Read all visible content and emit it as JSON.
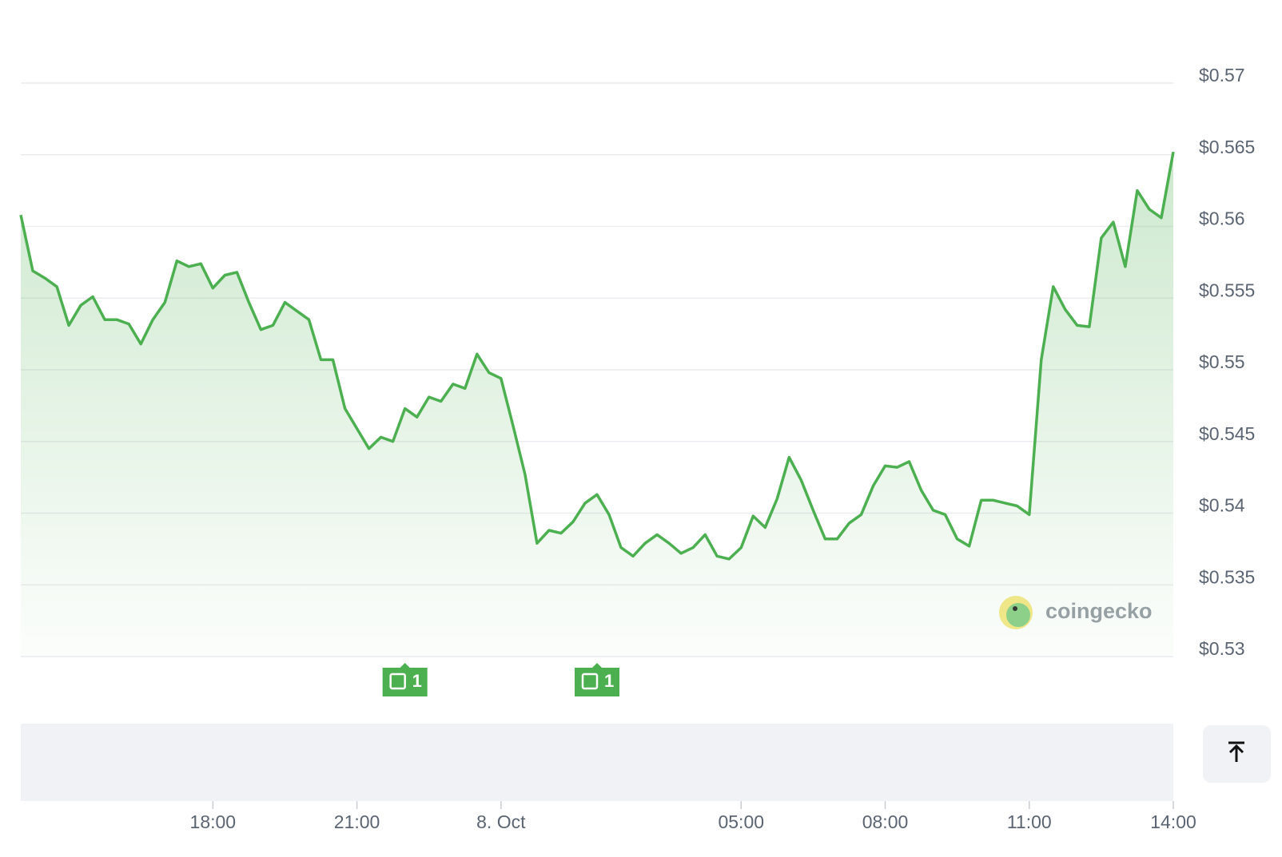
{
  "chart_data": {
    "type": "line",
    "color": "#4caf50",
    "grid": true,
    "watermark": "coingecko",
    "x": [
      -10,
      -9.75,
      -9.5,
      -9.25,
      -9,
      -8.75,
      -8.5,
      -8.25,
      -8,
      -7.75,
      -7.5,
      -7.25,
      -7,
      -6.75,
      -6.5,
      -6.25,
      -6,
      -5.75,
      -5.5,
      -5.25,
      -5,
      -4.75,
      -4.5,
      -4.25,
      -4,
      -3.75,
      -3.5,
      -3.25,
      -3,
      -2.75,
      -2.5,
      -2.25,
      -2,
      -1.75,
      -1.5,
      -1.25,
      -1,
      -0.75,
      -0.5,
      -0.25,
      0,
      0.25,
      0.5,
      0.75,
      1,
      1.25,
      1.5,
      1.75,
      2,
      2.25,
      2.5,
      2.75,
      3,
      3.25,
      3.5,
      3.75,
      4,
      4.25,
      4.5,
      4.75,
      5,
      5.25,
      5.5,
      5.75,
      6,
      6.25,
      6.5,
      6.75,
      7,
      7.25,
      7.5,
      7.75,
      8,
      8.25,
      8.5,
      8.75,
      9,
      9.25,
      9.5,
      9.75,
      10,
      10.25,
      10.5,
      10.75,
      11,
      11.25,
      11.5,
      11.75,
      12,
      12.25,
      12.5,
      12.75,
      13,
      13.25,
      13.5,
      13.75,
      14
    ],
    "values": [
      0.5608,
      0.5569,
      0.5564,
      0.5558,
      0.5531,
      0.5545,
      0.5551,
      0.5535,
      0.5535,
      0.5532,
      0.5518,
      0.5535,
      0.5547,
      0.5576,
      0.5572,
      0.5574,
      0.5557,
      0.5566,
      0.5568,
      0.5547,
      0.5528,
      0.5531,
      0.5547,
      0.5541,
      0.5535,
      0.5507,
      0.5507,
      0.5473,
      0.5459,
      0.5445,
      0.5453,
      0.545,
      0.5473,
      0.5467,
      0.5481,
      0.5478,
      0.549,
      0.5487,
      0.5511,
      0.5498,
      0.5494,
      0.5461,
      0.5427,
      0.5379,
      0.5388,
      0.5386,
      0.5394,
      0.5407,
      0.5413,
      0.5399,
      0.5376,
      0.537,
      0.5379,
      0.5385,
      0.5379,
      0.5372,
      0.5376,
      0.5385,
      0.537,
      0.5368,
      0.5376,
      0.5398,
      0.539,
      0.541,
      0.5439,
      0.5423,
      0.5402,
      0.5382,
      0.5382,
      0.5393,
      0.5399,
      0.5419,
      0.5433,
      0.5432,
      0.5436,
      0.5416,
      0.5402,
      0.5399,
      0.5382,
      0.5377,
      0.5409,
      0.5409,
      0.5407,
      0.5405,
      0.5399,
      0.5507,
      0.5558,
      0.5542,
      0.5531,
      0.553,
      0.5592,
      0.5603,
      0.5572,
      0.5625,
      0.5612,
      0.5606,
      0.5652
    ],
    "xlim": [
      -10,
      14
    ],
    "xticks": [
      {
        "value": -6,
        "label": "18:00"
      },
      {
        "value": -3,
        "label": "21:00"
      },
      {
        "value": 0,
        "label": "8. Oct"
      },
      {
        "value": 5,
        "label": "05:00"
      },
      {
        "value": 8,
        "label": "08:00"
      },
      {
        "value": 11,
        "label": "11:00"
      },
      {
        "value": 14,
        "label": "14:00"
      }
    ],
    "ylim": [
      0.53,
      0.57
    ],
    "yticks": [
      {
        "value": 0.53,
        "label": "$0.53"
      },
      {
        "value": 0.535,
        "label": "$0.535"
      },
      {
        "value": 0.54,
        "label": "$0.54"
      },
      {
        "value": 0.545,
        "label": "$0.545"
      },
      {
        "value": 0.55,
        "label": "$0.55"
      },
      {
        "value": 0.555,
        "label": "$0.555"
      },
      {
        "value": 0.56,
        "label": "$0.56"
      },
      {
        "value": 0.565,
        "label": "$0.565"
      },
      {
        "value": 0.57,
        "label": "$0.57"
      }
    ],
    "annotations": [
      {
        "x": -2,
        "label": "1"
      },
      {
        "x": 2,
        "label": "1"
      }
    ]
  }
}
